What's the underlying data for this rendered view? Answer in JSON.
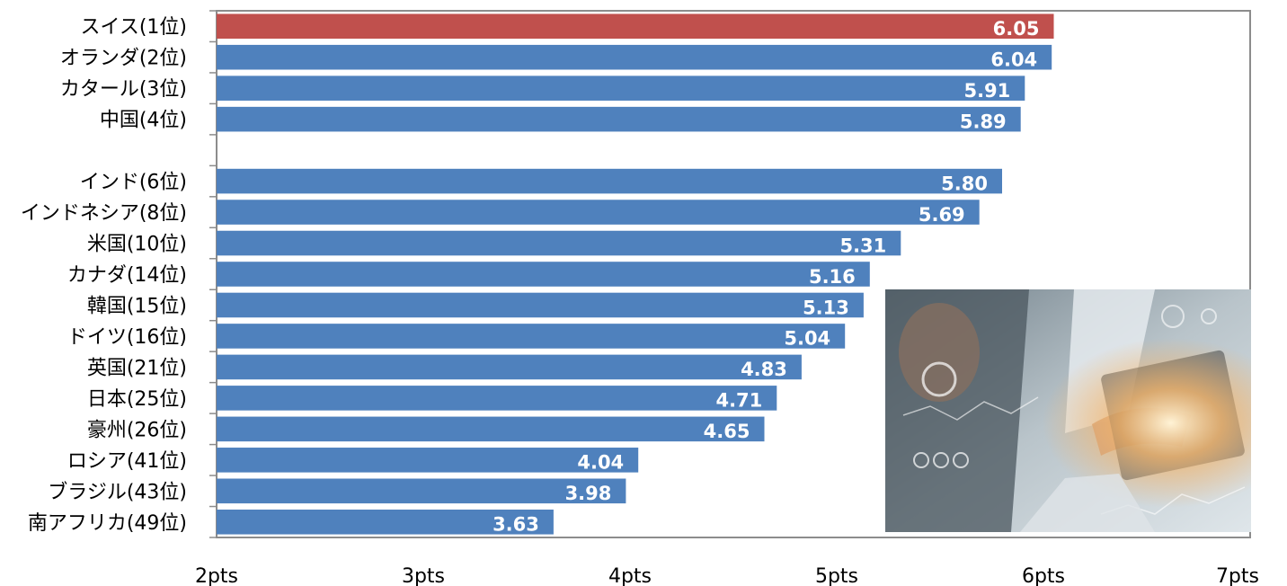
{
  "chart_data": {
    "type": "bar",
    "orientation": "horizontal",
    "title": "",
    "xlabel": "",
    "ylabel": "",
    "categories": [
      "スイス(1位)",
      "オランダ(2位)",
      "カタール(3位)",
      "中国(4位)",
      "",
      "インド(6位)",
      "インドネシア(8位)",
      "米国(10位)",
      "カナダ(14位)",
      "韓国(15位)",
      "ドイツ(16位)",
      "英国(21位)",
      "日本(25位)",
      "豪州(26位)",
      "ロシア(41位)",
      "ブラジル(43位)",
      "南アフリカ(49位)"
    ],
    "values": [
      6.05,
      6.04,
      5.91,
      5.89,
      null,
      5.8,
      5.69,
      5.31,
      5.16,
      5.13,
      5.04,
      4.83,
      4.71,
      4.65,
      4.04,
      3.98,
      3.63
    ],
    "value_labels": [
      "6.05",
      "6.04",
      "5.91",
      "5.89",
      "",
      "5.80",
      "5.69",
      "5.31",
      "5.16",
      "5.13",
      "5.04",
      "4.83",
      "4.71",
      "4.65",
      "4.04",
      "3.98",
      "3.63"
    ],
    "highlight_index": 0,
    "xlim": [
      2,
      7
    ],
    "x_ticks": [
      2,
      3,
      4,
      5,
      6,
      7
    ],
    "x_tick_labels": [
      "2pts",
      "3pts",
      "4pts",
      "5pts",
      "6pts",
      "7pts"
    ],
    "grid": false,
    "legend": "none",
    "colors": {
      "bar": "#4f81bd",
      "highlight": "#c0504d",
      "frame": "#8c8c8c",
      "value_text": "#ffffff"
    }
  },
  "inset_image": {
    "icon": "business-laptop-photo"
  }
}
